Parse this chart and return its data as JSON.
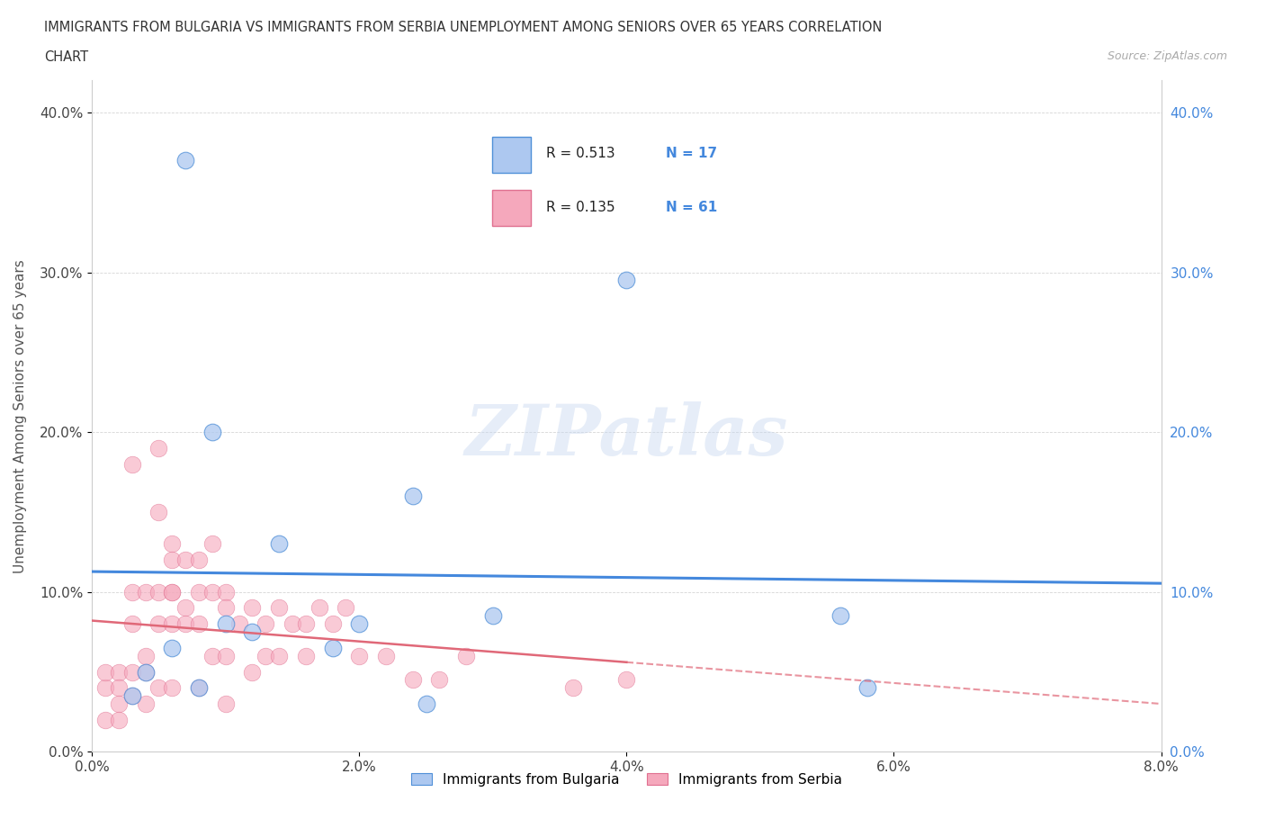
{
  "title_line1": "IMMIGRANTS FROM BULGARIA VS IMMIGRANTS FROM SERBIA UNEMPLOYMENT AMONG SENIORS OVER 65 YEARS CORRELATION",
  "title_line2": "CHART",
  "source": "Source: ZipAtlas.com",
  "ylabel": "Unemployment Among Seniors over 65 years",
  "xlim": [
    0.0,
    0.08
  ],
  "ylim": [
    0.0,
    0.42
  ],
  "xticks": [
    0.0,
    0.02,
    0.04,
    0.06,
    0.08
  ],
  "yticks": [
    0.0,
    0.1,
    0.2,
    0.3,
    0.4
  ],
  "watermark": "ZIPatlas",
  "legend_r1": "R = 0.513",
  "legend_n1": "N = 17",
  "legend_r2": "R = 0.135",
  "legend_n2": "N = 61",
  "legend_label1": "Immigrants from Bulgaria",
  "legend_label2": "Immigrants from Serbia",
  "color_bulgaria": "#adc8f0",
  "color_serbia": "#f5a8bc",
  "edge_bulgaria": "#5090d8",
  "edge_serbia": "#e07090",
  "line_bulgaria": "#4488dd",
  "line_serbia": "#e06878",
  "bulgaria_x": [
    0.003,
    0.004,
    0.006,
    0.007,
    0.008,
    0.009,
    0.01,
    0.012,
    0.014,
    0.018,
    0.02,
    0.024,
    0.025,
    0.03,
    0.04,
    0.056,
    0.058
  ],
  "bulgaria_y": [
    0.035,
    0.05,
    0.065,
    0.37,
    0.04,
    0.2,
    0.08,
    0.075,
    0.13,
    0.065,
    0.08,
    0.16,
    0.03,
    0.085,
    0.295,
    0.085,
    0.04
  ],
  "serbia_x": [
    0.001,
    0.001,
    0.001,
    0.002,
    0.002,
    0.002,
    0.002,
    0.003,
    0.003,
    0.003,
    0.003,
    0.003,
    0.004,
    0.004,
    0.004,
    0.004,
    0.005,
    0.005,
    0.005,
    0.005,
    0.005,
    0.006,
    0.006,
    0.006,
    0.006,
    0.006,
    0.006,
    0.007,
    0.007,
    0.007,
    0.008,
    0.008,
    0.008,
    0.008,
    0.009,
    0.009,
    0.009,
    0.01,
    0.01,
    0.01,
    0.01,
    0.011,
    0.012,
    0.012,
    0.013,
    0.013,
    0.014,
    0.014,
    0.015,
    0.016,
    0.016,
    0.017,
    0.018,
    0.019,
    0.02,
    0.022,
    0.024,
    0.026,
    0.028,
    0.036,
    0.04
  ],
  "serbia_y": [
    0.04,
    0.05,
    0.02,
    0.05,
    0.04,
    0.03,
    0.02,
    0.18,
    0.1,
    0.08,
    0.05,
    0.035,
    0.1,
    0.06,
    0.05,
    0.03,
    0.19,
    0.15,
    0.1,
    0.08,
    0.04,
    0.13,
    0.12,
    0.1,
    0.1,
    0.08,
    0.04,
    0.12,
    0.09,
    0.08,
    0.12,
    0.1,
    0.08,
    0.04,
    0.13,
    0.1,
    0.06,
    0.1,
    0.09,
    0.06,
    0.03,
    0.08,
    0.09,
    0.05,
    0.08,
    0.06,
    0.09,
    0.06,
    0.08,
    0.08,
    0.06,
    0.09,
    0.08,
    0.09,
    0.06,
    0.06,
    0.045,
    0.045,
    0.06,
    0.04,
    0.045
  ]
}
